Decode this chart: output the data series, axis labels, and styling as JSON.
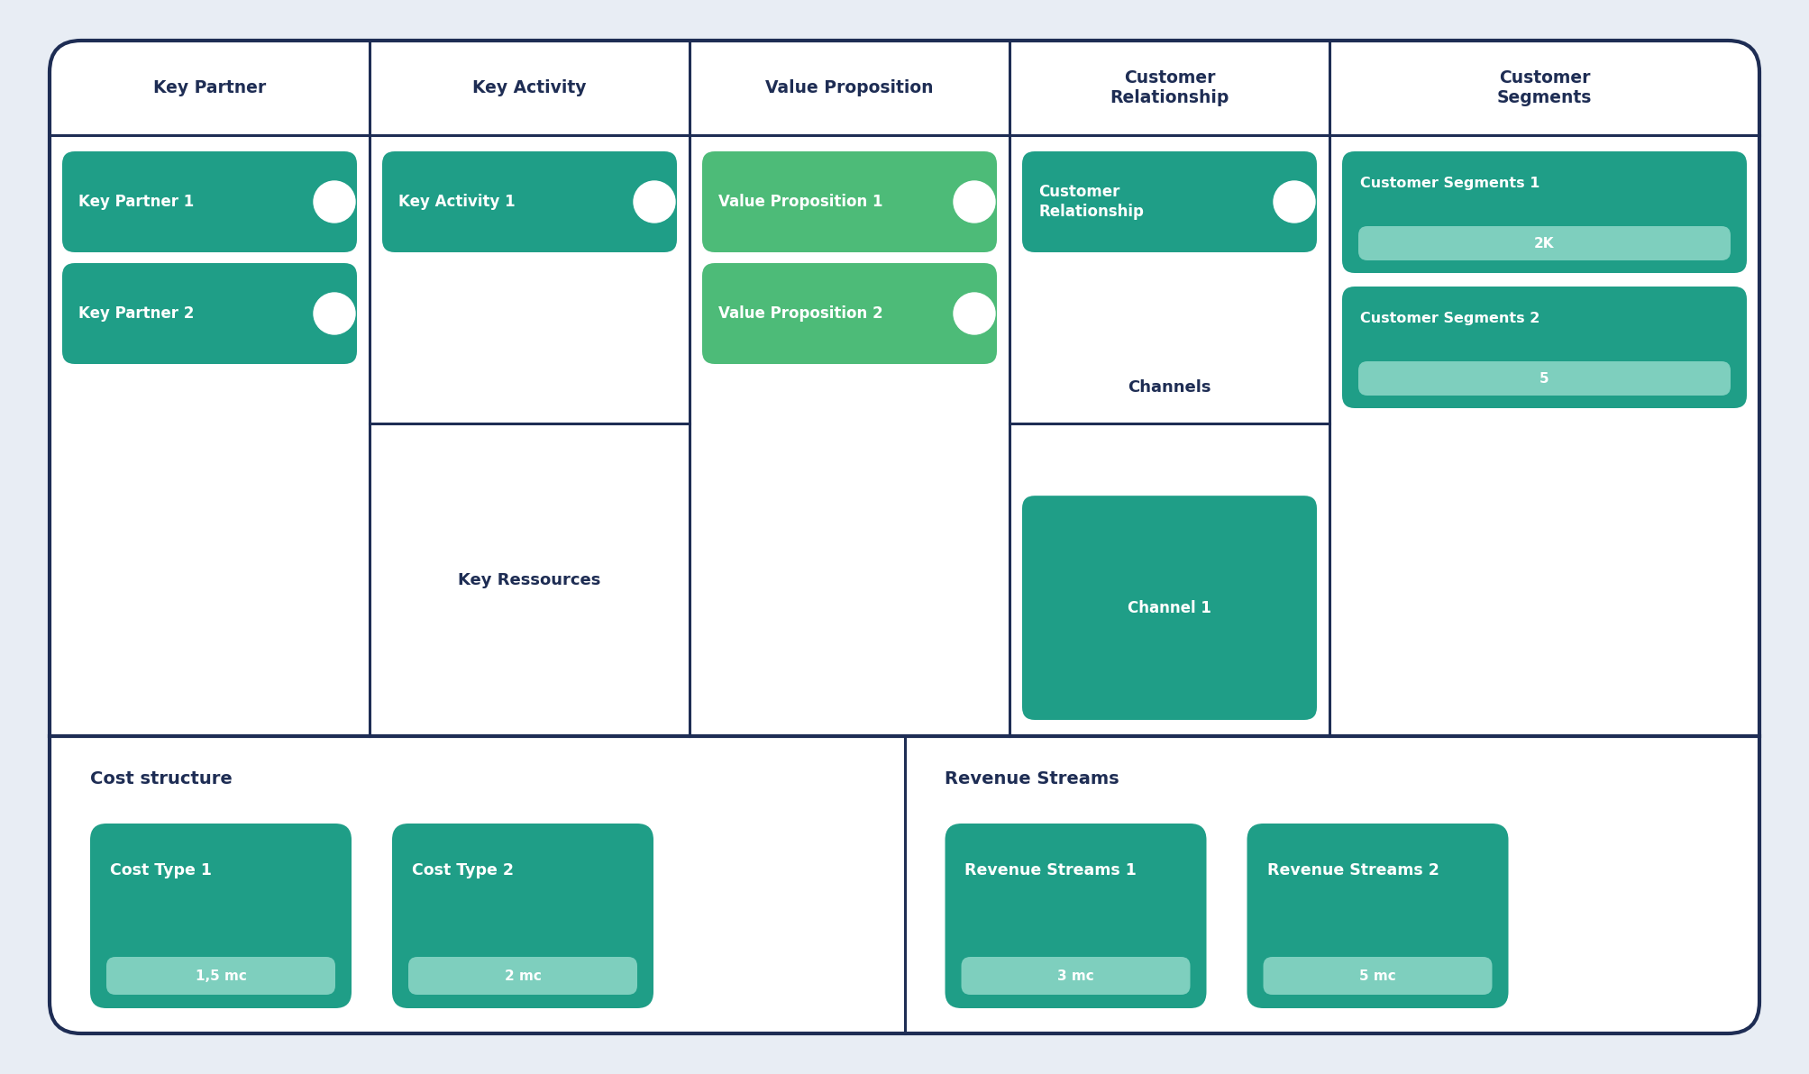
{
  "bg_color": "#e8edf4",
  "border_color": "#1e2d54",
  "white": "#ffffff",
  "dark_navy": "#1e2d54",
  "teal_dark": "#1f9e87",
  "teal_medium": "#20a88f",
  "green_vp": "#4dbb78",
  "teal_badge": "#7ecfbe",
  "header_titles": [
    "Key Partner",
    "Key Activity",
    "Value Proposition",
    "Customer\nRelationship",
    "Customer\nSegments"
  ],
  "key_partner_items": [
    "Key Partner 1",
    "Key Partner 2"
  ],
  "key_activity_items": [
    "Key Activity 1"
  ],
  "key_resources_label": "Key Ressources",
  "value_prop_items": [
    "Value Proposition 1",
    "Value Proposition 2"
  ],
  "customer_rel_item": "Customer\nRelationship",
  "channels_label": "Channels",
  "channel_item": "Channel 1",
  "customer_seg_items": [
    "Customer Segments 1",
    "Customer Segments 2"
  ],
  "customer_seg_values": [
    "2K",
    "5"
  ],
  "cost_title": "Cost structure",
  "cost_items": [
    "Cost Type 1",
    "Cost Type 2"
  ],
  "cost_values": [
    "1,5 mc",
    "2 mc"
  ],
  "revenue_title": "Revenue Streams",
  "revenue_items": [
    "Revenue Streams 1",
    "Revenue Streams 2"
  ],
  "revenue_values": [
    "3 mc",
    "5 mc"
  ]
}
